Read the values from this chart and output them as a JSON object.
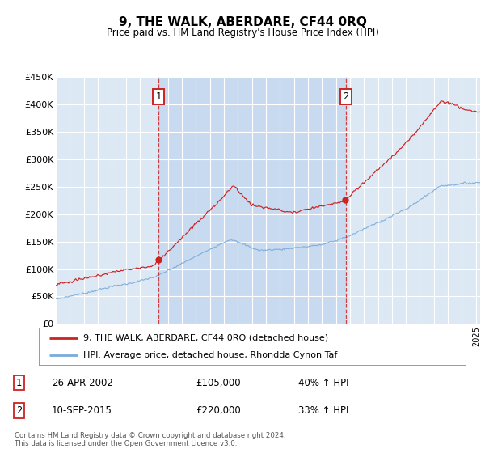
{
  "title": "9, THE WALK, ABERDARE, CF44 0RQ",
  "subtitle": "Price paid vs. HM Land Registry's House Price Index (HPI)",
  "ylim": [
    0,
    450000
  ],
  "xlim_start": 1995.0,
  "xlim_end": 2025.3,
  "plot_bg_color": "#dce9f5",
  "highlight_bg_color": "#c8daf0",
  "grid_color": "#ffffff",
  "red_color": "#cc2222",
  "blue_color": "#7aacda",
  "transaction1_date": 2002.32,
  "transaction1_price": 105000,
  "transaction1_label": "1",
  "transaction2_date": 2015.7,
  "transaction2_price": 220000,
  "transaction2_label": "2",
  "legend_line1": "9, THE WALK, ABERDARE, CF44 0RQ (detached house)",
  "legend_line2": "HPI: Average price, detached house, Rhondda Cynon Taf",
  "table_row1_label": "1",
  "table_row1_date": "26-APR-2002",
  "table_row1_price": "£105,000",
  "table_row1_hpi": "40% ↑ HPI",
  "table_row2_label": "2",
  "table_row2_date": "10-SEP-2015",
  "table_row2_price": "£220,000",
  "table_row2_hpi": "33% ↑ HPI",
  "footer": "Contains HM Land Registry data © Crown copyright and database right 2024.\nThis data is licensed under the Open Government Licence v3.0.",
  "yticks": [
    0,
    50000,
    100000,
    150000,
    200000,
    250000,
    300000,
    350000,
    400000,
    450000
  ],
  "ytick_labels": [
    "£0",
    "£50K",
    "£100K",
    "£150K",
    "£200K",
    "£250K",
    "£300K",
    "£350K",
    "£400K",
    "£450K"
  ]
}
